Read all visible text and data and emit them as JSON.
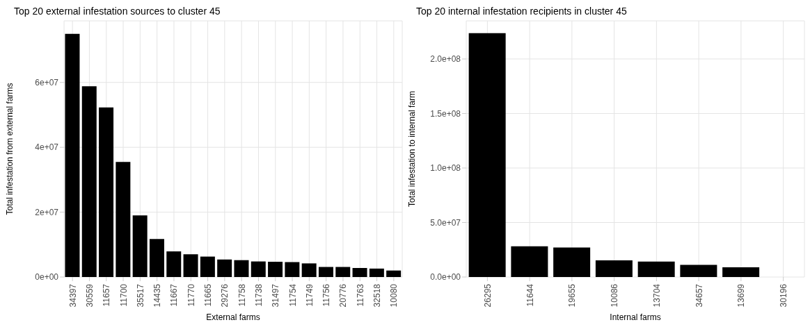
{
  "chart_data": [
    {
      "type": "bar",
      "title": "Top 20 external infestation sources to cluster 45",
      "xlabel": "External farms",
      "ylabel": "Total infestation from external farms",
      "categories": [
        "34397",
        "30559",
        "11657",
        "11700",
        "35517",
        "14435",
        "11667",
        "11770",
        "11665",
        "29276",
        "11758",
        "11738",
        "31497",
        "11754",
        "11749",
        "11756",
        "20776",
        "11763",
        "32518",
        "10080"
      ],
      "values": [
        75000000,
        58800000,
        52300000,
        35500000,
        19000000,
        11700000,
        7900000,
        7000000,
        6300000,
        5400000,
        5200000,
        4800000,
        4700000,
        4600000,
        4200000,
        3100000,
        3100000,
        2800000,
        2600000,
        2000000
      ],
      "color": "#000000",
      "ylim": [
        0,
        79000000
      ],
      "yticks": [
        {
          "value": 0,
          "label": "0e+00"
        },
        {
          "value": 20000000,
          "label": "2e+07"
        },
        {
          "value": 40000000,
          "label": "4e+07"
        },
        {
          "value": 60000000,
          "label": "6e+07"
        }
      ],
      "grid": true
    },
    {
      "type": "bar",
      "title": "Top 20 internal infestation recipients in cluster 45",
      "xlabel": "Internal farms",
      "ylabel": "Total infestation to internal farm",
      "categories": [
        "26295",
        "11644",
        "19655",
        "10086",
        "13704",
        "34657",
        "13699",
        "30196"
      ],
      "values": [
        223700000,
        28200000,
        27000000,
        15300000,
        14100000,
        11200000,
        8900000,
        null
      ],
      "color": "#000000",
      "ylim": [
        0,
        235000000
      ],
      "yticks": [
        {
          "value": 0,
          "label": "0.0e+00"
        },
        {
          "value": 50000000,
          "label": "5.0e+07"
        },
        {
          "value": 100000000,
          "label": "1.0e+08"
        },
        {
          "value": 150000000,
          "label": "1.5e+08"
        },
        {
          "value": 200000000,
          "label": "2.0e+08"
        }
      ],
      "grid": true
    }
  ]
}
